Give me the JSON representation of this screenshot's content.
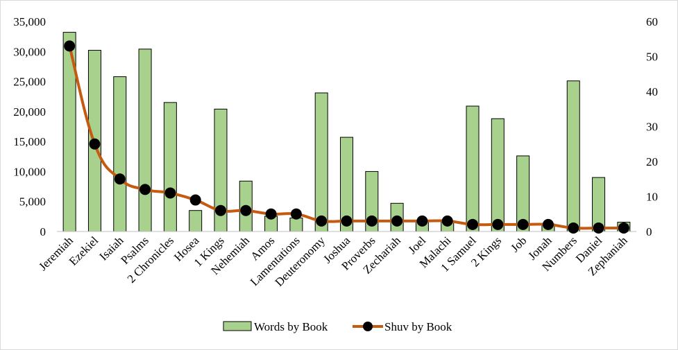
{
  "chart_data": {
    "type": "bar-line-combo",
    "categories": [
      "Jeremiah",
      "Ezekiel",
      "Isaiah",
      "Psalms",
      "2 Chronicles",
      "Hosea",
      "1 Kings",
      "Nehemiah",
      "Amos",
      "Lamentations",
      "Deuteronomy",
      "Joshua",
      "Proverbs",
      "Zechariah",
      "Joel",
      "Malachi",
      "1 Samuel",
      "2 Kings",
      "Job",
      "Jonah",
      "Numbers",
      "Daniel",
      "Zephaniah"
    ],
    "series": [
      {
        "name": "Words by Book",
        "type": "bar",
        "axis": "left",
        "color": "#a9d18e",
        "values": [
          33200,
          30200,
          25800,
          30400,
          21500,
          3500,
          20400,
          8400,
          2550,
          2250,
          23100,
          15700,
          10000,
          4700,
          1800,
          1600,
          20900,
          18800,
          12600,
          1250,
          25100,
          9000,
          1550
        ]
      },
      {
        "name": "Shuv by Book",
        "type": "line",
        "axis": "right",
        "color": "#c55a11",
        "marker_color": "#000000",
        "values": [
          53,
          25,
          15,
          12,
          11,
          9,
          6,
          6,
          5,
          5,
          3,
          3,
          3,
          3,
          3,
          3,
          2,
          2,
          2,
          2,
          1,
          1,
          1
        ]
      }
    ],
    "y_left": {
      "min": 0,
      "max": 35000,
      "ticks": [
        "0",
        "5,000",
        "10,000",
        "15,000",
        "20,000",
        "25,000",
        "30,000",
        "35,000"
      ]
    },
    "y_right": {
      "min": 0,
      "max": 60,
      "ticks": [
        "0",
        "10",
        "20",
        "30",
        "40",
        "50",
        "60"
      ]
    },
    "grid": false,
    "legend_placement": "bottom"
  }
}
